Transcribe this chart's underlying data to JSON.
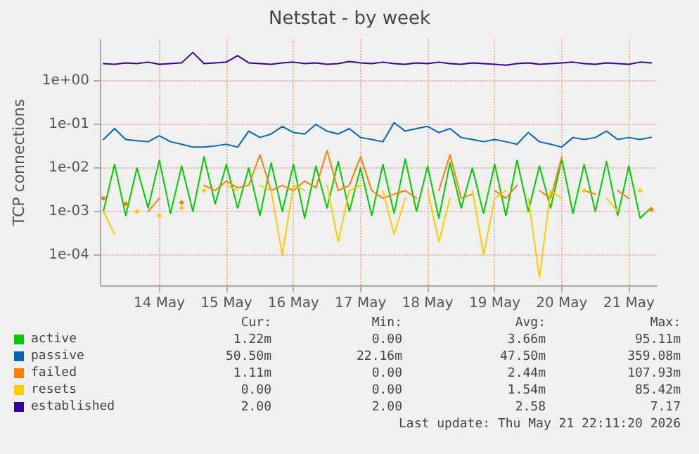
{
  "chart_data": {
    "type": "line",
    "title": "Netstat - by week",
    "ylabel": "TCP connections",
    "log": "y",
    "grid": true,
    "legend": "bottom left",
    "marker": "none",
    "line_style": "solid",
    "ylim": [
      2e-05,
      9
    ],
    "yticks": [
      {
        "value": 0.0001,
        "label": "1e-04"
      },
      {
        "value": 0.001,
        "label": "1e-03"
      },
      {
        "value": 0.01,
        "label": "1e-02"
      },
      {
        "value": 0.1,
        "label": "1e-01"
      },
      {
        "value": 1,
        "label": "1e+00"
      }
    ],
    "xlim": [
      "2026-05-13T15:00",
      "2026-05-21T22:00"
    ],
    "xticks": [
      {
        "value": "2026-05-14T12:00",
        "label": "14 May"
      },
      {
        "value": "2026-05-15T12:00",
        "label": "15 May"
      },
      {
        "value": "2026-05-16T12:00",
        "label": "16 May"
      },
      {
        "value": "2026-05-17T12:00",
        "label": "17 May"
      },
      {
        "value": "2026-05-18T12:00",
        "label": "18 May"
      },
      {
        "value": "2026-05-19T12:00",
        "label": "19 May"
      },
      {
        "value": "2026-05-20T12:00",
        "label": "20 May"
      },
      {
        "value": "2026-05-21T12:00",
        "label": "21 May"
      }
    ],
    "x": [
      "2026-05-13T16:00",
      "2026-05-13T20:00",
      "2026-05-14T00:00",
      "2026-05-14T04:00",
      "2026-05-14T08:00",
      "2026-05-14T12:00",
      "2026-05-14T16:00",
      "2026-05-14T20:00",
      "2026-05-15T00:00",
      "2026-05-15T04:00",
      "2026-05-15T08:00",
      "2026-05-15T12:00",
      "2026-05-15T16:00",
      "2026-05-15T20:00",
      "2026-05-16T00:00",
      "2026-05-16T04:00",
      "2026-05-16T08:00",
      "2026-05-16T12:00",
      "2026-05-16T16:00",
      "2026-05-16T20:00",
      "2026-05-17T00:00",
      "2026-05-17T04:00",
      "2026-05-17T08:00",
      "2026-05-17T12:00",
      "2026-05-17T16:00",
      "2026-05-17T20:00",
      "2026-05-18T00:00",
      "2026-05-18T04:00",
      "2026-05-18T08:00",
      "2026-05-18T12:00",
      "2026-05-18T16:00",
      "2026-05-18T20:00",
      "2026-05-19T00:00",
      "2026-05-19T04:00",
      "2026-05-19T08:00",
      "2026-05-19T12:00",
      "2026-05-19T16:00",
      "2026-05-19T20:00",
      "2026-05-20T00:00",
      "2026-05-20T04:00",
      "2026-05-20T08:00",
      "2026-05-20T12:00",
      "2026-05-20T16:00",
      "2026-05-20T20:00",
      "2026-05-21T00:00",
      "2026-05-21T04:00",
      "2026-05-21T08:00",
      "2026-05-21T12:00",
      "2026-05-21T16:00",
      "2026-05-21T20:00"
    ],
    "series": [
      {
        "name": "active",
        "color": "#00cc00",
        "values": [
          0.001,
          0.012,
          0.0008,
          0.01,
          0.0012,
          0.015,
          0.0009,
          0.011,
          0.001,
          0.018,
          0.0015,
          0.012,
          0.0012,
          0.01,
          0.0008,
          0.013,
          0.001,
          0.012,
          0.0007,
          0.011,
          0.0012,
          0.014,
          0.001,
          0.01,
          0.0008,
          0.012,
          0.0009,
          0.016,
          0.001,
          0.011,
          0.0007,
          0.013,
          0.0012,
          0.01,
          0.0009,
          0.012,
          0.0008,
          0.015,
          0.001,
          0.011,
          0.0012,
          0.016,
          0.0009,
          0.012,
          0.001,
          0.014,
          0.0008,
          0.011,
          0.0007,
          0.00122
        ]
      },
      {
        "name": "passive",
        "color": "#0066b3",
        "values": [
          0.045,
          0.08,
          0.045,
          0.042,
          0.04,
          0.055,
          0.04,
          0.035,
          0.03,
          0.03,
          0.032,
          0.035,
          0.03,
          0.07,
          0.05,
          0.06,
          0.09,
          0.065,
          0.06,
          0.1,
          0.07,
          0.06,
          0.08,
          0.05,
          0.045,
          0.04,
          0.11,
          0.07,
          0.08,
          0.09,
          0.065,
          0.08,
          0.05,
          0.045,
          0.04,
          0.045,
          0.04,
          0.035,
          0.065,
          0.04,
          0.035,
          0.03,
          0.05,
          0.045,
          0.05,
          0.07,
          0.045,
          0.05,
          0.045,
          0.0505
        ]
      },
      {
        "name": "failed",
        "color": "#ff8000",
        "values": [
          0.002,
          null,
          0.0015,
          null,
          0.001,
          0.002,
          null,
          0.0016,
          null,
          0.004,
          0.003,
          0.005,
          0.0035,
          0.004,
          0.02,
          0.003,
          0.004,
          0.003,
          0.005,
          0.0035,
          0.025,
          0.003,
          0.004,
          0.018,
          0.003,
          0.002,
          0.0025,
          0.003,
          0.002,
          null,
          0.003,
          0.02,
          0.002,
          0.0025,
          null,
          0.003,
          0.002,
          0.004,
          null,
          0.003,
          0.002,
          0.018,
          null,
          0.003,
          0.0025,
          null,
          0.003,
          0.002,
          null,
          0.00111
        ]
      },
      {
        "name": "resets",
        "color": "#ffcc00",
        "values": [
          0.001,
          0.0003,
          null,
          0.001,
          null,
          0.0008,
          null,
          0.0012,
          null,
          0.003,
          null,
          0.004,
          0.003,
          null,
          0.004,
          0.003,
          0.0001,
          0.004,
          0.003,
          null,
          0.004,
          0.0002,
          0.003,
          0.004,
          null,
          0.003,
          0.0003,
          0.002,
          null,
          0.003,
          0.0002,
          0.002,
          null,
          0.003,
          0.0001,
          0.002,
          0.003,
          null,
          0.002,
          3e-05,
          0.003,
          0.002,
          null,
          0.003,
          null,
          0.002,
          0.001,
          null,
          0.003,
          null
        ]
      },
      {
        "name": "established",
        "color": "#330099",
        "values": [
          2.5,
          2.4,
          2.6,
          2.5,
          2.7,
          2.4,
          2.5,
          2.6,
          4.5,
          2.5,
          2.6,
          2.7,
          3.8,
          2.6,
          2.5,
          2.4,
          2.6,
          2.7,
          2.5,
          2.6,
          2.4,
          2.5,
          2.8,
          2.6,
          2.5,
          2.7,
          2.5,
          2.4,
          2.6,
          2.5,
          2.7,
          2.5,
          2.4,
          2.6,
          2.5,
          2.4,
          2.3,
          2.5,
          2.6,
          2.4,
          2.5,
          2.6,
          2.7,
          2.5,
          2.4,
          2.6,
          2.5,
          2.4,
          2.7,
          2.6
        ]
      }
    ],
    "annotations": [
      "Cur:",
      "Min:",
      "Avg:",
      "Max:",
      "1.22m",
      "0.00",
      "3.66m",
      "95.11m",
      "50.50m",
      "22.16m",
      "47.50m",
      "359.08m",
      "1.11m",
      "0.00",
      "2.44m",
      "107.93m",
      "0.00",
      "0.00",
      "1.54m",
      "85.42m",
      "2.00",
      "2.00",
      "2.58",
      "7.17",
      "Last update: Thu May 21 22:11:20 2026"
    ]
  }
}
